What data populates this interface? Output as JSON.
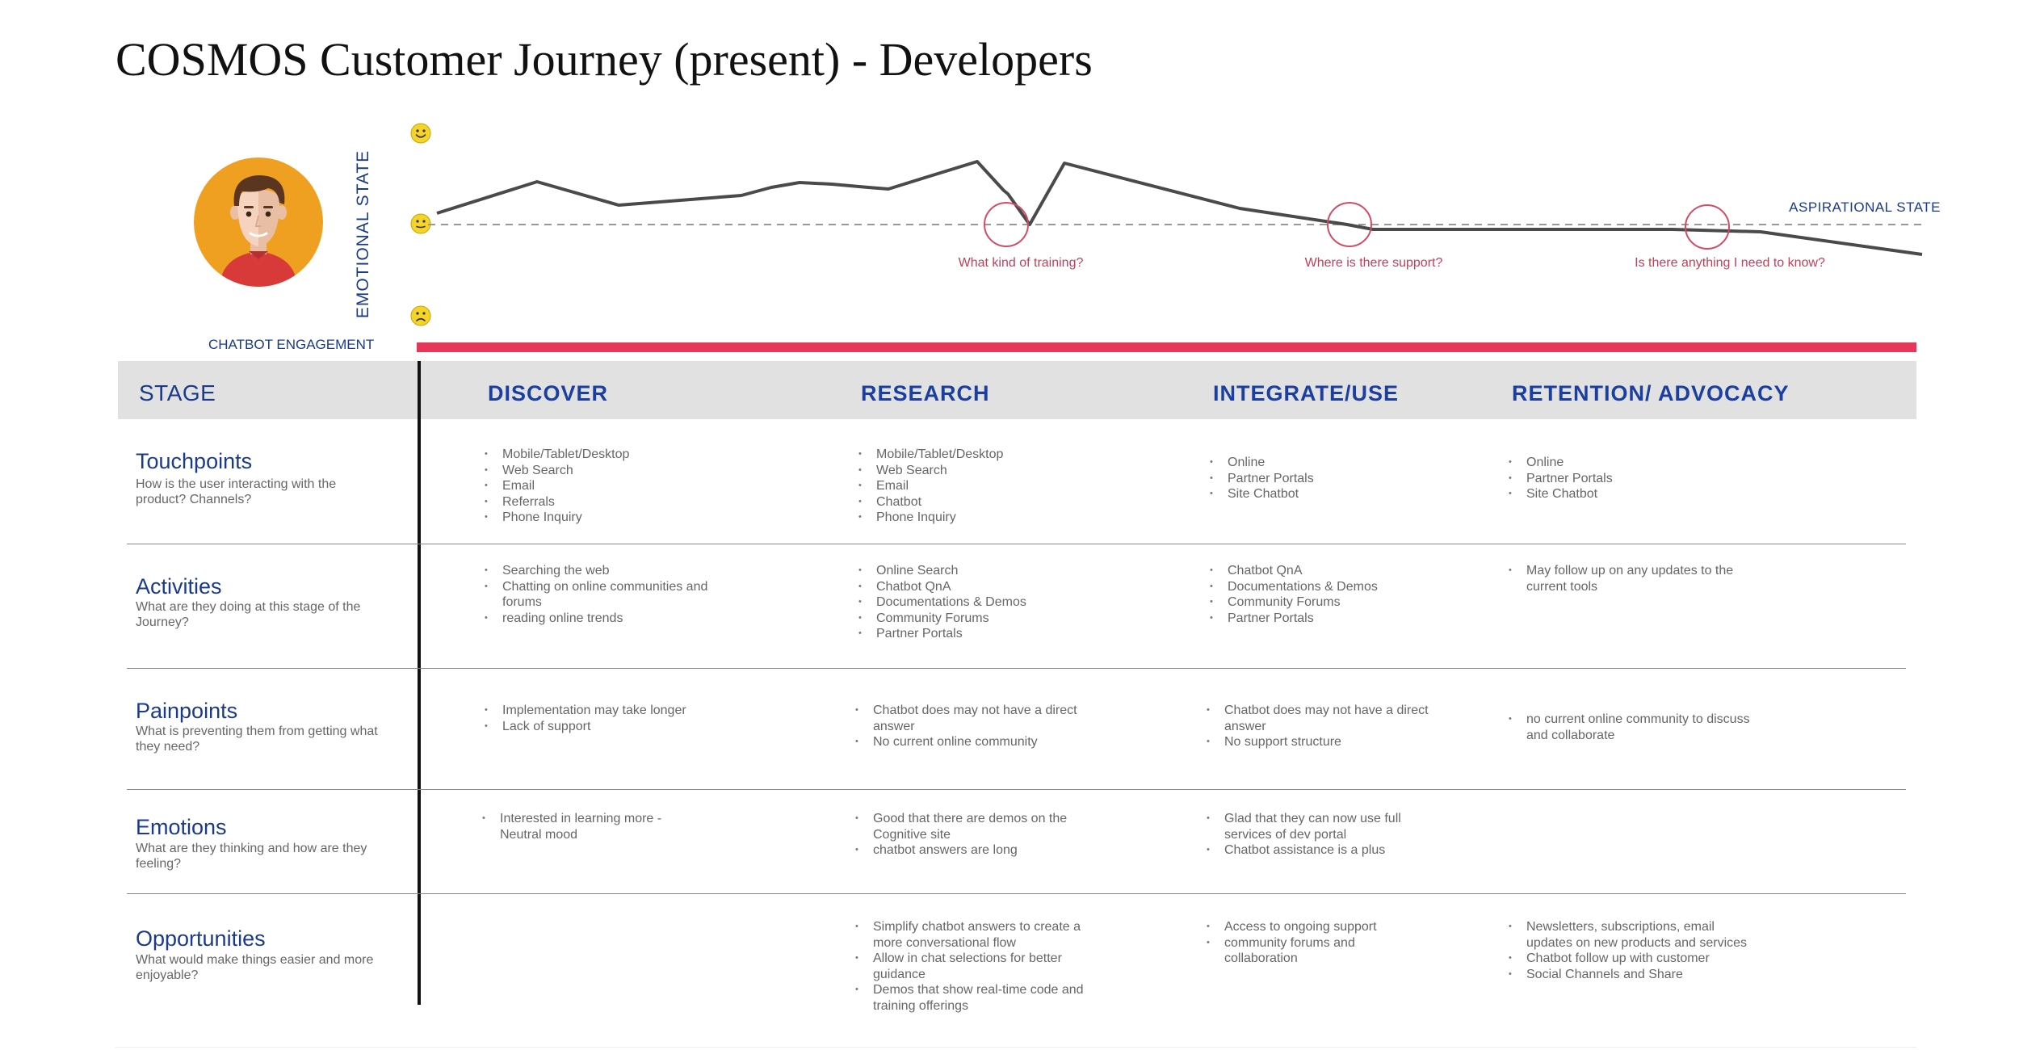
{
  "title": "COSMOS Customer Journey (present) - Developers",
  "persona": {
    "icon": "developer-avatar-icon"
  },
  "emotional_state_label": "EMOTIONAL STATE",
  "aspirational_label": "ASPIRATIONAL STATE",
  "chatbot_engagement_label": "CHATBOT ENGAGEMENT",
  "questions": [
    "What kind of training?",
    "Where is there support?",
    "Is there anything I need to know?"
  ],
  "colors": {
    "title": "#111111",
    "accent_blue": "#1a3fa0",
    "label_blue": "#1a3a8c",
    "chatbot_bar": "#e8365a",
    "question_red": "#c0405a",
    "stage_bar": "#e1e1e1",
    "emoji_yellow": "#f5d329",
    "avatar_orange": "#f0a020"
  },
  "stage_label": "STAGE",
  "stages": [
    "DISCOVER",
    "RESEARCH",
    "INTEGRATE/USE",
    "RETENTION/ ADVOCACY"
  ],
  "rows": [
    {
      "title": "Touchpoints",
      "subtitle": "How is the user interacting with the product? Channels?",
      "cells": [
        [
          "Mobile/Tablet/Desktop",
          "Web Search",
          "Email",
          "Referrals",
          "Phone Inquiry"
        ],
        [
          "Mobile/Tablet/Desktop",
          "Web Search",
          "Email",
          "Chatbot",
          "Phone Inquiry"
        ],
        [
          "Online",
          "Partner Portals",
          "Site Chatbot"
        ],
        [
          "Online",
          "Partner Portals",
          "Site Chatbot"
        ]
      ]
    },
    {
      "title": "Activities",
      "subtitle": "What are they doing at this stage of the Journey?",
      "cells": [
        [
          "Searching the web",
          "Chatting on online communities and forums",
          "reading online trends"
        ],
        [
          "Online Search",
          "Chatbot QnA",
          "Documentations & Demos",
          "Community Forums",
          "Partner Portals"
        ],
        [
          "Chatbot QnA",
          "Documentations & Demos",
          "Community Forums",
          "Partner Portals"
        ],
        [
          "May follow up on any updates to the current tools"
        ]
      ]
    },
    {
      "title": "Painpoints",
      "subtitle": "What is preventing them from getting what they need?",
      "cells": [
        [
          "Implementation may take longer",
          "Lack of support"
        ],
        [
          "Chatbot does may not have a direct answer",
          "No current online community"
        ],
        [
          "Chatbot does may not have a direct answer",
          "No support structure"
        ],
        [
          "no current online community to discuss and collaborate"
        ]
      ]
    },
    {
      "title": "Emotions",
      "subtitle": "What are they thinking and how are they feeling?",
      "cells": [
        [
          "Interested in learning more - Neutral mood"
        ],
        [
          "Good that there are demos on the Cognitive site",
          "chatbot answers are long"
        ],
        [
          "Glad that they can now use full services of dev portal",
          "Chatbot assistance is a plus"
        ],
        []
      ]
    },
    {
      "title": "Opportunities",
      "subtitle": "What would make things easier and more enjoyable?",
      "cells": [
        [],
        [
          "Simplify chatbot answers to create a more conversational flow",
          "Allow in chat selections for better guidance",
          "Demos that show real-time code and training offerings"
        ],
        [
          "Access to ongoing support",
          "community forums and collaboration"
        ],
        [
          "Newsletters, subscriptions, email updates on new products and services",
          "Chatbot follow up with customer",
          "Social Channels and Share"
        ]
      ]
    }
  ]
}
